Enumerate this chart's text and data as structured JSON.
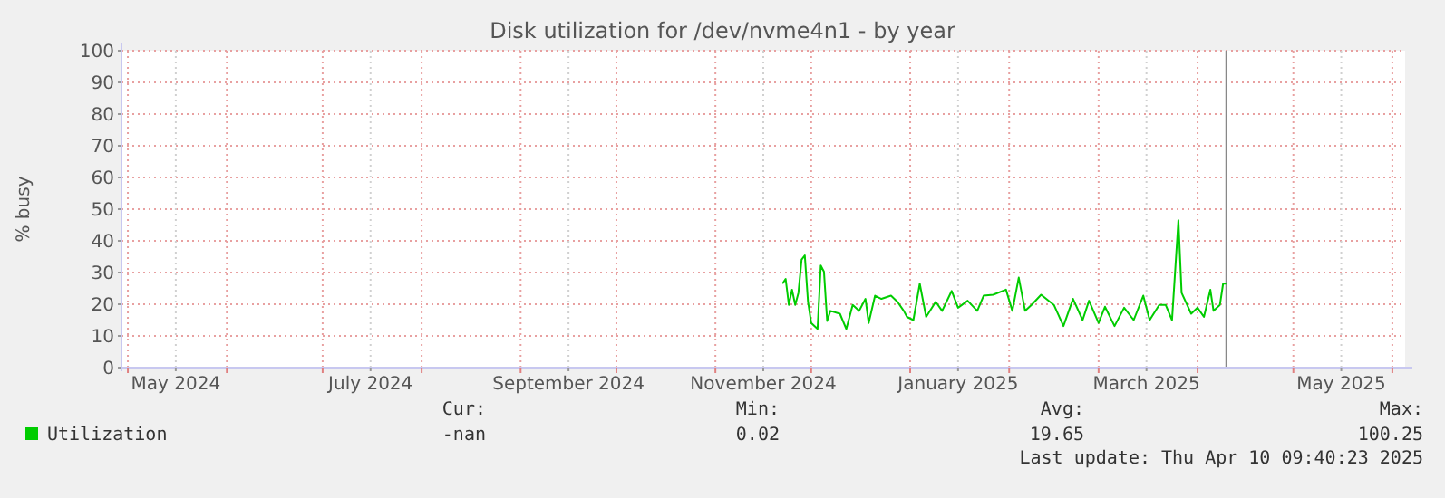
{
  "chart_data": {
    "type": "line",
    "title": "Disk utilization for /dev/nvme4n1 - by year",
    "ylabel": "% busy",
    "xlim": [
      "2024-04-29",
      "2025-06-05"
    ],
    "xticks": [
      {
        "value": "2024-05-01",
        "label": null
      },
      {
        "value": "2024-05-16",
        "label": "May 2024"
      },
      {
        "value": "2024-06-01",
        "label": null
      },
      {
        "value": "2024-07-01",
        "label": null
      },
      {
        "value": "2024-07-16",
        "label": "July 2024"
      },
      {
        "value": "2024-08-01",
        "label": null
      },
      {
        "value": "2024-09-01",
        "label": null
      },
      {
        "value": "2024-09-16",
        "label": "September 2024"
      },
      {
        "value": "2024-10-01",
        "label": null
      },
      {
        "value": "2024-11-01",
        "label": null
      },
      {
        "value": "2024-11-16",
        "label": "November 2024"
      },
      {
        "value": "2024-12-01",
        "label": null
      },
      {
        "value": "2025-01-01",
        "label": null
      },
      {
        "value": "2025-01-16",
        "label": "January 2025"
      },
      {
        "value": "2025-02-01",
        "label": null
      },
      {
        "value": "2025-03-01",
        "label": null
      },
      {
        "value": "2025-03-16",
        "label": "March 2025"
      },
      {
        "value": "2025-04-01",
        "label": null
      },
      {
        "value": "2025-05-01",
        "label": null
      },
      {
        "value": "2025-05-16",
        "label": "May 2025"
      },
      {
        "value": "2025-06-01",
        "label": null
      }
    ],
    "ylim": [
      0,
      100
    ],
    "yticks": [
      0,
      10,
      20,
      30,
      40,
      50,
      60,
      70,
      80,
      90,
      100
    ],
    "grid": true,
    "legend": "bottom left",
    "marker": "none",
    "line_style": "solid",
    "x": [
      "2024-11-22",
      "2024-11-23",
      "2024-11-24",
      "2024-11-25",
      "2024-11-26",
      "2024-11-27",
      "2024-11-28",
      "2024-11-29",
      "2024-11-30",
      "2024-12-01",
      "2024-12-03",
      "2024-12-04",
      "2024-12-05",
      "2024-12-06",
      "2024-12-07",
      "2024-12-10",
      "2024-12-12",
      "2024-12-14",
      "2024-12-16",
      "2024-12-18",
      "2024-12-19",
      "2024-12-21",
      "2024-12-23",
      "2024-12-26",
      "2024-12-28",
      "2024-12-30",
      "2024-12-31",
      "2025-01-02",
      "2025-01-04",
      "2025-01-06",
      "2025-01-09",
      "2025-01-11",
      "2025-01-14",
      "2025-01-16",
      "2025-01-19",
      "2025-01-22",
      "2025-01-24",
      "2025-01-27",
      "2025-01-31",
      "2025-02-02",
      "2025-02-04",
      "2025-02-06",
      "2025-02-08",
      "2025-02-11",
      "2025-02-15",
      "2025-02-18",
      "2025-02-21",
      "2025-02-24",
      "2025-02-26",
      "2025-03-01",
      "2025-03-03",
      "2025-03-06",
      "2025-03-09",
      "2025-03-12",
      "2025-03-15",
      "2025-03-17",
      "2025-03-20",
      "2025-03-22",
      "2025-03-24",
      "2025-03-26",
      "2025-03-27",
      "2025-03-30",
      "2025-04-01",
      "2025-04-03",
      "2025-04-05",
      "2025-04-06",
      "2025-04-08",
      "2025-04-09",
      "2025-04-10"
    ],
    "series": [
      {
        "name": "Utilization",
        "color": "#00cc00",
        "values": [
          26.5,
          28,
          19.8,
          24.6,
          19.8,
          23.6,
          34.1,
          35.4,
          20.8,
          14.1,
          12.2,
          32.2,
          30.3,
          14.7,
          17.9,
          17,
          12.2,
          19.8,
          17.9,
          21.7,
          14.1,
          22.7,
          21.7,
          22.7,
          20.8,
          17.9,
          16,
          15,
          26.5,
          16,
          20.8,
          17.9,
          24.2,
          18.9,
          21.1,
          17.9,
          22.7,
          23,
          24.6,
          17.9,
          28.4,
          17.9,
          19.8,
          23,
          19.8,
          13.1,
          21.7,
          15,
          21.1,
          14.1,
          19.2,
          13.1,
          18.9,
          15,
          22.7,
          15,
          19.8,
          19.8,
          15,
          46.5,
          23.6,
          17,
          18.9,
          16,
          24.6,
          17.9,
          19.8,
          26.5,
          26.5
        ]
      }
    ],
    "ref_lines": [
      {
        "axis": "x",
        "value": "2025-04-10",
        "color": "#888888",
        "line_style": "solid"
      }
    ],
    "annotations": [
      "Cur:",
      "Min:",
      "Avg:",
      "Max:",
      "-nan",
      "0.02",
      "19.65",
      "100.25",
      "Last update: Thu Apr 10 09:40:23 2025"
    ]
  }
}
